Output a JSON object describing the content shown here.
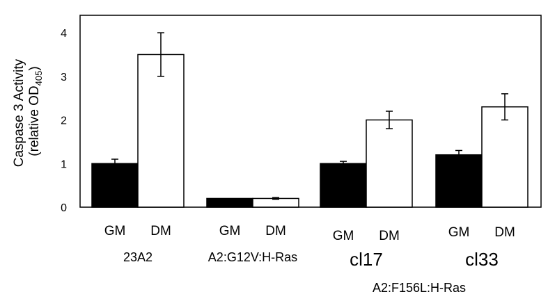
{
  "chart_data": {
    "type": "bar",
    "title": "",
    "ylabel_line1": "Caspase 3 Activity",
    "ylabel_line2": "(relative OD",
    "ylabel_sub": "405",
    "ylabel_close": ")",
    "ylim": [
      0,
      4.4
    ],
    "yticks": [
      "0",
      "1",
      "2",
      "3",
      "4"
    ],
    "grid": false,
    "series_colors": {
      "GM": "#000000",
      "DM": "#ffffff"
    },
    "groups": [
      {
        "name": "23A2",
        "bars": [
          {
            "label": "GM",
            "value": 1.0,
            "error": 0.1
          },
          {
            "label": "DM",
            "value": 3.5,
            "error": 0.5
          }
        ]
      },
      {
        "name": "A2:G12V:H-Ras",
        "bars": [
          {
            "label": "GM",
            "value": 0.2,
            "error": 0.0
          },
          {
            "label": "DM",
            "value": 0.2,
            "error": 0.02
          }
        ]
      },
      {
        "name": "cl17",
        "bars": [
          {
            "label": "GM",
            "value": 1.0,
            "error": 0.05
          },
          {
            "label": "DM",
            "value": 2.0,
            "error": 0.2
          }
        ]
      },
      {
        "name": "cl33",
        "bars": [
          {
            "label": "GM",
            "value": 1.2,
            "error": 0.1
          },
          {
            "label": "DM",
            "value": 2.3,
            "error": 0.3
          }
        ]
      }
    ],
    "bracket_label": "A2:F156L:H-Ras"
  }
}
